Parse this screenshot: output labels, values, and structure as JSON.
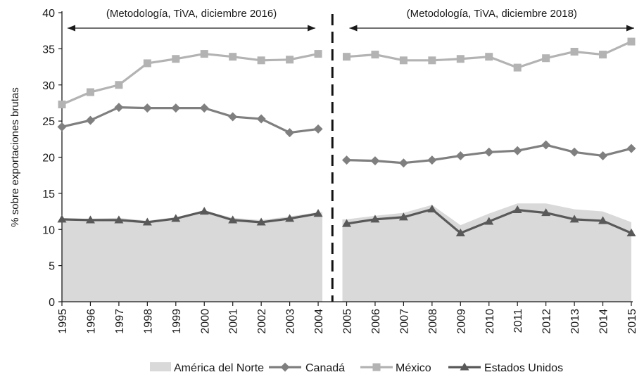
{
  "chart_data": {
    "type": "line",
    "title": "",
    "xlabel": "",
    "ylabel": "% sobre exportaciones brutas",
    "ylim": [
      0,
      40
    ],
    "yticks": [
      "0",
      "5",
      "10",
      "15",
      "20",
      "25",
      "30",
      "35",
      "40"
    ],
    "categories": [
      "1995",
      "1996",
      "1997",
      "1998",
      "1999",
      "2000",
      "2001",
      "2002",
      "2003",
      "2004",
      "2005",
      "2006",
      "2007",
      "2008",
      "2009",
      "2010",
      "2011",
      "2012",
      "2013",
      "2014",
      "2015"
    ],
    "annotations": [
      {
        "text": "(Metodología, TiVA, diciembre 2016)",
        "from": "1995",
        "to": "2004"
      },
      {
        "text": "(Metodología, TiVA, diciembre 2018)",
        "from": "2005",
        "to": "2015"
      }
    ],
    "break_between": [
      "2004",
      "2005"
    ],
    "series": [
      {
        "name": "América del Norte",
        "kind": "area",
        "color": "#d9d9d9",
        "values": [
          11.5,
          11.5,
          11.6,
          11.2,
          11.7,
          12.6,
          11.6,
          11.3,
          11.8,
          12.4,
          11.4,
          11.9,
          12.3,
          13.4,
          10.6,
          12.2,
          13.6,
          13.6,
          12.8,
          12.5,
          11.0
        ]
      },
      {
        "name": "Canadá",
        "kind": "line",
        "marker": "diamond",
        "color": "#7f7f7f",
        "values": [
          24.2,
          25.1,
          26.9,
          26.8,
          26.8,
          26.8,
          25.6,
          25.3,
          23.4,
          23.9,
          19.6,
          19.5,
          19.2,
          19.6,
          20.2,
          20.7,
          20.9,
          21.7,
          20.7,
          20.2,
          21.2
        ]
      },
      {
        "name": "México",
        "kind": "line",
        "marker": "square",
        "color": "#b3b3b3",
        "values": [
          27.3,
          29.0,
          30.0,
          33.0,
          33.6,
          34.3,
          33.9,
          33.4,
          33.5,
          34.3,
          33.9,
          34.2,
          33.4,
          33.4,
          33.6,
          33.9,
          32.4,
          33.7,
          34.6,
          34.2,
          36.0
        ]
      },
      {
        "name": "Estados Unidos",
        "kind": "line",
        "marker": "triangle",
        "color": "#595959",
        "values": [
          11.4,
          11.3,
          11.3,
          11.0,
          11.5,
          12.5,
          11.3,
          11.0,
          11.5,
          12.2,
          10.8,
          11.4,
          11.7,
          12.8,
          9.5,
          11.1,
          12.7,
          12.3,
          11.4,
          11.2,
          9.5
        ]
      }
    ]
  }
}
